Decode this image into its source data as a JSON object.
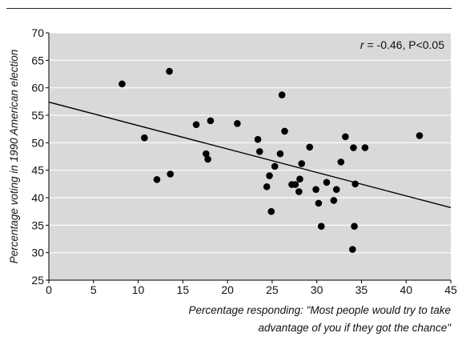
{
  "chart_data": {
    "type": "scatter",
    "title": "",
    "xlabel_lines": [
      "Percentage responding: \"Most people would try to take",
      "advantage of you if they got the chance\""
    ],
    "ylabel": "Percentage voting in 1990 American election",
    "xlim": [
      0,
      45
    ],
    "ylim": [
      25,
      70
    ],
    "xticks": [
      0,
      5,
      10,
      15,
      20,
      25,
      30,
      35,
      40,
      45
    ],
    "yticks": [
      25,
      30,
      35,
      40,
      45,
      50,
      55,
      60,
      65,
      70
    ],
    "grid": "horizontal",
    "annotation": {
      "r_label": "r",
      "r_value": " = -0.46, P<0.05"
    },
    "regression_line": {
      "x": [
        0,
        45
      ],
      "y": [
        57.4,
        38.2
      ]
    },
    "points": [
      [
        8.2,
        60.7
      ],
      [
        10.7,
        50.9
      ],
      [
        12.1,
        43.3
      ],
      [
        13.5,
        63.0
      ],
      [
        13.6,
        44.3
      ],
      [
        16.5,
        53.3
      ],
      [
        17.6,
        48.0
      ],
      [
        17.8,
        47.0
      ],
      [
        18.1,
        54.0
      ],
      [
        21.1,
        53.5
      ],
      [
        23.4,
        50.6
      ],
      [
        23.6,
        48.4
      ],
      [
        24.4,
        42.0
      ],
      [
        24.7,
        44.0
      ],
      [
        24.9,
        37.5
      ],
      [
        25.3,
        45.7
      ],
      [
        25.9,
        48.0
      ],
      [
        26.1,
        58.7
      ],
      [
        26.4,
        52.1
      ],
      [
        27.2,
        42.4
      ],
      [
        27.6,
        42.4
      ],
      [
        28.0,
        41.1
      ],
      [
        28.1,
        43.4
      ],
      [
        28.3,
        46.2
      ],
      [
        29.2,
        49.2
      ],
      [
        29.9,
        41.5
      ],
      [
        30.2,
        39.0
      ],
      [
        30.5,
        34.8
      ],
      [
        31.1,
        42.8
      ],
      [
        31.9,
        39.5
      ],
      [
        32.2,
        41.5
      ],
      [
        32.7,
        46.5
      ],
      [
        33.2,
        51.1
      ],
      [
        34.0,
        30.6
      ],
      [
        34.1,
        49.1
      ],
      [
        34.2,
        34.8
      ],
      [
        34.3,
        42.5
      ],
      [
        35.4,
        49.1
      ],
      [
        41.5,
        51.3
      ]
    ]
  }
}
